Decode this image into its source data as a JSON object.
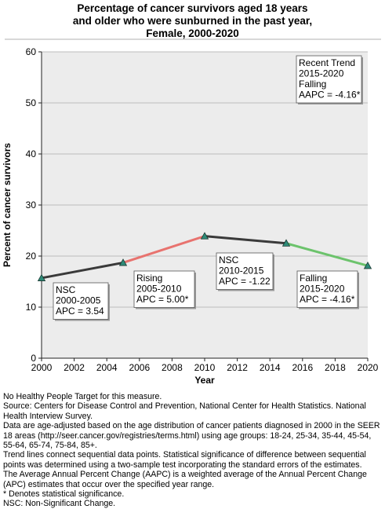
{
  "chart_data": {
    "type": "line",
    "title_lines": [
      "Percentage of cancer survivors aged 18 years",
      "and older who were sunburned in the past year,",
      "Female,  2000-2020"
    ],
    "xlabel": "Year",
    "ylabel": "Percent of cancer survivors",
    "xlim": [
      2000,
      2020
    ],
    "ylim": [
      0,
      60
    ],
    "x_ticks": [
      2000,
      2002,
      2004,
      2006,
      2008,
      2010,
      2012,
      2014,
      2016,
      2018,
      2020
    ],
    "y_ticks": [
      0,
      10,
      20,
      30,
      40,
      50,
      60
    ],
    "grid": "horizontal",
    "points": [
      {
        "x": 2000,
        "y": 15.7
      },
      {
        "x": 2005,
        "y": 18.7
      },
      {
        "x": 2010,
        "y": 23.9
      },
      {
        "x": 2015,
        "y": 22.5
      },
      {
        "x": 2020,
        "y": 18.1
      }
    ],
    "segments": [
      {
        "x": [
          2000,
          2005
        ],
        "trend": "nsc",
        "color": "#3a3a3a"
      },
      {
        "x": [
          2005,
          2010
        ],
        "trend": "rising",
        "color": "#e8736f"
      },
      {
        "x": [
          2010,
          2015
        ],
        "trend": "nsc",
        "color": "#3a3a3a"
      },
      {
        "x": [
          2015,
          2020
        ],
        "trend": "falling",
        "color": "#6cc36c"
      }
    ],
    "marker_color": "#2e8b78",
    "annotations": [
      {
        "lines": [
          "NSC",
          "2000-2005",
          "APC =  3.54"
        ]
      },
      {
        "lines": [
          "Rising",
          "2005-2010",
          "APC =  5.00*"
        ]
      },
      {
        "lines": [
          "NSC",
          "2010-2015",
          "APC = -1.22"
        ]
      },
      {
        "lines": [
          "Falling",
          "2015-2020",
          "APC = -4.16*"
        ]
      },
      {
        "lines": [
          "Recent Trend",
          "2015-2020",
          "Falling",
          "AAPC = -4.16*"
        ]
      }
    ]
  },
  "notes": [
    "No Healthy People Target for this measure.",
    "Source: Centers for Disease Control and Prevention, National Center for Health Statistics. National Health Interview Survey.",
    "Data are age-adjusted based on the age distribution of cancer patients diagnosed in 2000 in the SEER 18 areas (http://seer.cancer.gov/registries/terms.html) using age groups: 18-24, 25-34, 35-44, 45-54, 55-64, 65-74, 75-84, 85+.",
    "Trend lines connect sequential data points. Statistical significance of difference between sequential points was determined using a two-sample test incorporating the standard errors of the estimates.",
    "The Average Annual Percent Change (AAPC) is a weighted average of the Annual Percent Change (APC) estimates that occur over the specified year range.",
    "* Denotes statistical significance.",
    "NSC: Non-Significant Change."
  ]
}
